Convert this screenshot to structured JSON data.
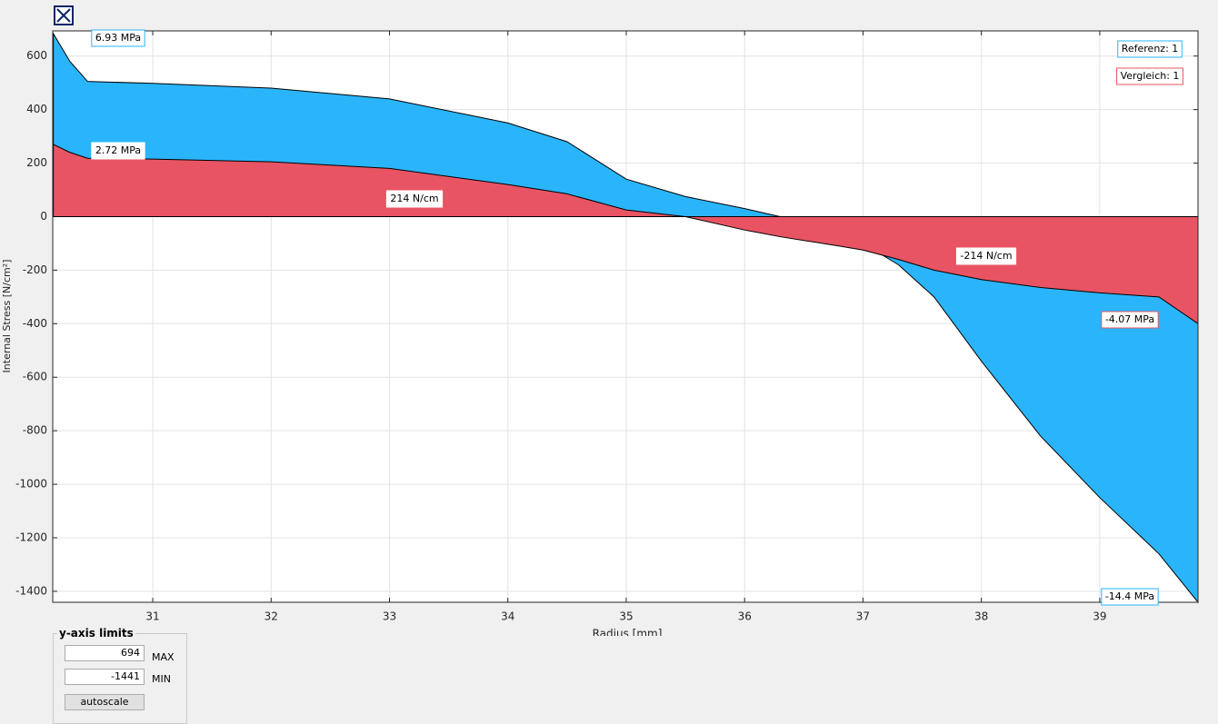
{
  "chart_data": {
    "type": "area",
    "xlabel": "Radius [mm]",
    "ylabel": "Internal Stress [N/cm²]",
    "x": [
      30.16,
      30.3,
      30.45,
      31,
      32,
      33,
      34,
      34.5,
      35,
      35.5,
      36,
      36.3,
      36.8,
      37,
      37.3,
      37.6,
      38,
      38.5,
      39,
      39.5,
      39.83
    ],
    "series": [
      {
        "name": "Referenz: 1",
        "color": "#2ab5fb",
        "values": [
          684,
          580,
          505,
          498,
          480,
          440,
          350,
          280,
          140,
          75,
          30,
          0,
          -60,
          -100,
          -180,
          -300,
          -540,
          -820,
          -1050,
          -1260,
          -1441
        ]
      },
      {
        "name": "Vergleich: 1",
        "color": "#e85463",
        "values": [
          270,
          240,
          218,
          215,
          205,
          180,
          120,
          85,
          25,
          0,
          -50,
          -75,
          -110,
          -125,
          -160,
          -200,
          -235,
          -265,
          -285,
          -300,
          -400
        ]
      }
    ],
    "annotations": [
      "6.93 MPa",
      "2.72 MPa",
      "214 N/cm",
      "-214 N/cm",
      "-4.07 MPa",
      "-14.4 MPa"
    ],
    "xlim": [
      30.155,
      39.83
    ],
    "xticks": [
      31,
      32,
      33,
      34,
      35,
      36,
      37,
      38,
      39
    ],
    "ylim": [
      -1441,
      694
    ],
    "yticks": [
      -1400,
      -1200,
      -1000,
      -800,
      -600,
      -400,
      -200,
      0,
      200,
      400,
      600
    ],
    "grid": true,
    "legend": "upper right"
  },
  "panel": {
    "title": "y-axis limits",
    "max_value": "694",
    "max_label": "MAX",
    "min_value": "-1441",
    "min_label": "MIN",
    "button": "autoscale"
  }
}
